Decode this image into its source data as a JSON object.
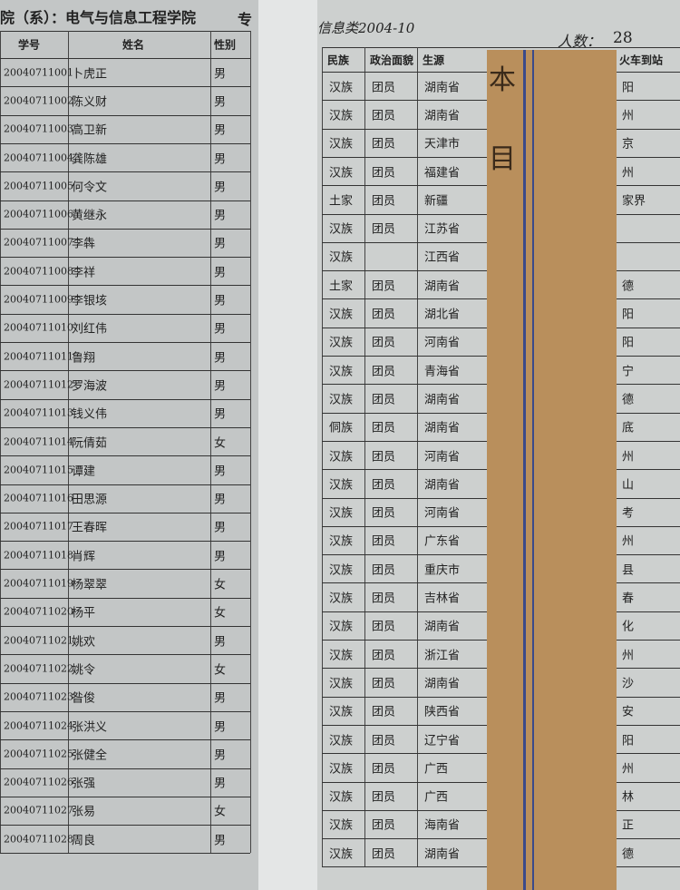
{
  "header": {
    "department_label": "院（系）：",
    "department": "电气与信息工程学院",
    "class_fragment": "专",
    "class_name": "信息类2004-10",
    "count_label": "人数：",
    "count": "28"
  },
  "left_table": {
    "columns": [
      "学号",
      "姓名",
      "性别"
    ],
    "rows": [
      [
        "20040711001",
        "卜虎正",
        "男"
      ],
      [
        "20040711002",
        "陈义财",
        "男"
      ],
      [
        "20040711003",
        "高卫新",
        "男"
      ],
      [
        "20040711004",
        "龚陈雄",
        "男"
      ],
      [
        "20040711005",
        "何令文",
        "男"
      ],
      [
        "20040711006",
        "黄继永",
        "男"
      ],
      [
        "20040711007",
        "李犇",
        "男"
      ],
      [
        "20040711008",
        "李祥",
        "男"
      ],
      [
        "20040711009",
        "李银垓",
        "男"
      ],
      [
        "20040711010",
        "刘红伟",
        "男"
      ],
      [
        "20040711011",
        "鲁翔",
        "男"
      ],
      [
        "20040711012",
        "罗海波",
        "男"
      ],
      [
        "20040711013",
        "钱义伟",
        "男"
      ],
      [
        "20040711014",
        "阮倩茹",
        "女"
      ],
      [
        "20040711015",
        "谭建",
        "男"
      ],
      [
        "20040711016",
        "田思源",
        "男"
      ],
      [
        "20040711017",
        "王春晖",
        "男"
      ],
      [
        "20040711018",
        "肖辉",
        "男"
      ],
      [
        "20040711019",
        "杨翠翠",
        "女"
      ],
      [
        "20040711020",
        "杨平",
        "女"
      ],
      [
        "20040711021",
        "姚欢",
        "男"
      ],
      [
        "20040711022",
        "姚令",
        "女"
      ],
      [
        "20040711023",
        "昝俊",
        "男"
      ],
      [
        "20040711024",
        "张洪义",
        "男"
      ],
      [
        "20040711025",
        "张健全",
        "男"
      ],
      [
        "20040711026",
        "张强",
        "男"
      ],
      [
        "20040711027",
        "张易",
        "女"
      ],
      [
        "20040711028",
        "周良",
        "男"
      ]
    ]
  },
  "right_table": {
    "columns": [
      "民族",
      "政治面貌",
      "生源",
      "火车到站"
    ],
    "rows": [
      [
        "汉族",
        "团员",
        "湖南省",
        "阳"
      ],
      [
        "汉族",
        "团员",
        "湖南省",
        "州"
      ],
      [
        "汉族",
        "团员",
        "天津市",
        "京"
      ],
      [
        "汉族",
        "团员",
        "福建省",
        "州"
      ],
      [
        "土家",
        "团员",
        "新疆",
        "家界"
      ],
      [
        "汉族",
        "团员",
        "江苏省",
        null
      ],
      [
        "汉族",
        null,
        "江西省",
        null
      ],
      [
        "土家",
        "团员",
        "湖南省",
        "德"
      ],
      [
        "汉族",
        "团员",
        "湖北省",
        "阳"
      ],
      [
        "汉族",
        "团员",
        "河南省",
        "阳"
      ],
      [
        "汉族",
        "团员",
        "青海省",
        "宁"
      ],
      [
        "汉族",
        "团员",
        "湖南省",
        "德"
      ],
      [
        "侗族",
        "团员",
        "湖南省",
        "底"
      ],
      [
        "汉族",
        "团员",
        "河南省",
        "州"
      ],
      [
        "汉族",
        "团员",
        "湖南省",
        "山"
      ],
      [
        "汉族",
        "团员",
        "河南省",
        "考"
      ],
      [
        "汉族",
        "团员",
        "广东省",
        "州"
      ],
      [
        "汉族",
        "团员",
        "重庆市",
        "县"
      ],
      [
        "汉族",
        "团员",
        "吉林省",
        "春"
      ],
      [
        "汉族",
        "团员",
        "湖南省",
        "化"
      ],
      [
        "汉族",
        "团员",
        "浙江省",
        "州"
      ],
      [
        "汉族",
        "团员",
        "湖南省",
        "沙"
      ],
      [
        "汉族",
        "团员",
        "陕西省",
        "安"
      ],
      [
        "汉族",
        "团员",
        "辽宁省",
        "阳"
      ],
      [
        "汉族",
        "团员",
        "广西",
        "州"
      ],
      [
        "汉族",
        "团员",
        "广西",
        "林"
      ],
      [
        "汉族",
        "团员",
        "海南省",
        "正"
      ],
      [
        "汉族",
        "团员",
        "湖南省",
        "德"
      ]
    ]
  },
  "bookmark": [
    "本",
    "目"
  ]
}
